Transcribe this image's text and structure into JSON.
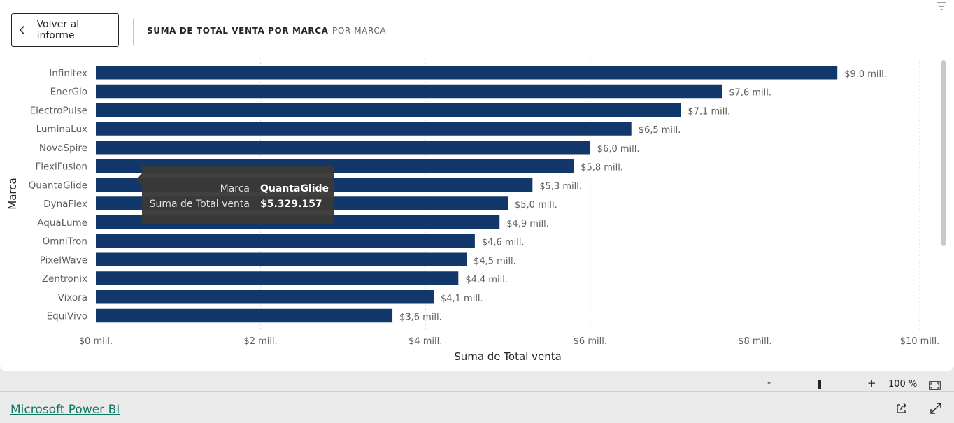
{
  "header": {
    "back_label": "Volver al informe",
    "tabs": [
      {
        "label": "SUMA DE TOTAL VENTA POR MARCA",
        "active": true
      },
      {
        "label": "POR MARCA",
        "active": false
      }
    ]
  },
  "chart_data": {
    "type": "bar",
    "orientation": "horizontal",
    "categories": [
      "Infinitex",
      "EnerGlo",
      "ElectroPulse",
      "LuminaLux",
      "NovaSpire",
      "FlexiFusion",
      "QuantaGlide",
      "DynaFlex",
      "AquaLume",
      "OmniTron",
      "PixelWave",
      "Zentronix",
      "Vixora",
      "EquiVivo"
    ],
    "values": [
      9.0,
      7.6,
      7.1,
      6.5,
      6.0,
      5.8,
      5.3,
      5.0,
      4.9,
      4.6,
      4.5,
      4.4,
      4.1,
      3.6
    ],
    "value_labels": [
      "$9,0 mill.",
      "$7,6 mill.",
      "$7,1 mill.",
      "$6,5 mill.",
      "$6,0 mill.",
      "$5,8 mill.",
      "$5,3 mill.",
      "$5,0 mill.",
      "$4,9 mill.",
      "$4,6 mill.",
      "$4,5 mill.",
      "$4,4 mill.",
      "$4,1 mill.",
      "$3,6 mill."
    ],
    "xlabel": "Suma de Total venta",
    "ylabel": "Marca",
    "xlim": [
      0,
      10
    ],
    "x_ticks": [
      0,
      2,
      4,
      6,
      8,
      10
    ],
    "x_tick_labels": [
      "$0 mill.",
      "$2 mill.",
      "$4 mill.",
      "$6 mill.",
      "$8 mill.",
      "$10 mill."
    ],
    "grid": "vertical dotted",
    "bar_color": "#12386b",
    "tooltip": {
      "category_index": 6,
      "rows": [
        {
          "label": "Marca",
          "value": "QuantaGlide"
        },
        {
          "label": "Suma de Total venta",
          "value": "$5.329.157"
        }
      ]
    }
  },
  "footer": {
    "zoom_minus": "-",
    "zoom_plus": "+",
    "zoom_level": "100 %",
    "zoom_fraction": 0.5,
    "brand_link": "Microsoft Power BI"
  },
  "icons": {
    "back": "chevron-left-icon",
    "filter": "filter-icon",
    "fit": "fit-to-page-icon",
    "share": "share-icon",
    "expand": "expand-icon"
  }
}
